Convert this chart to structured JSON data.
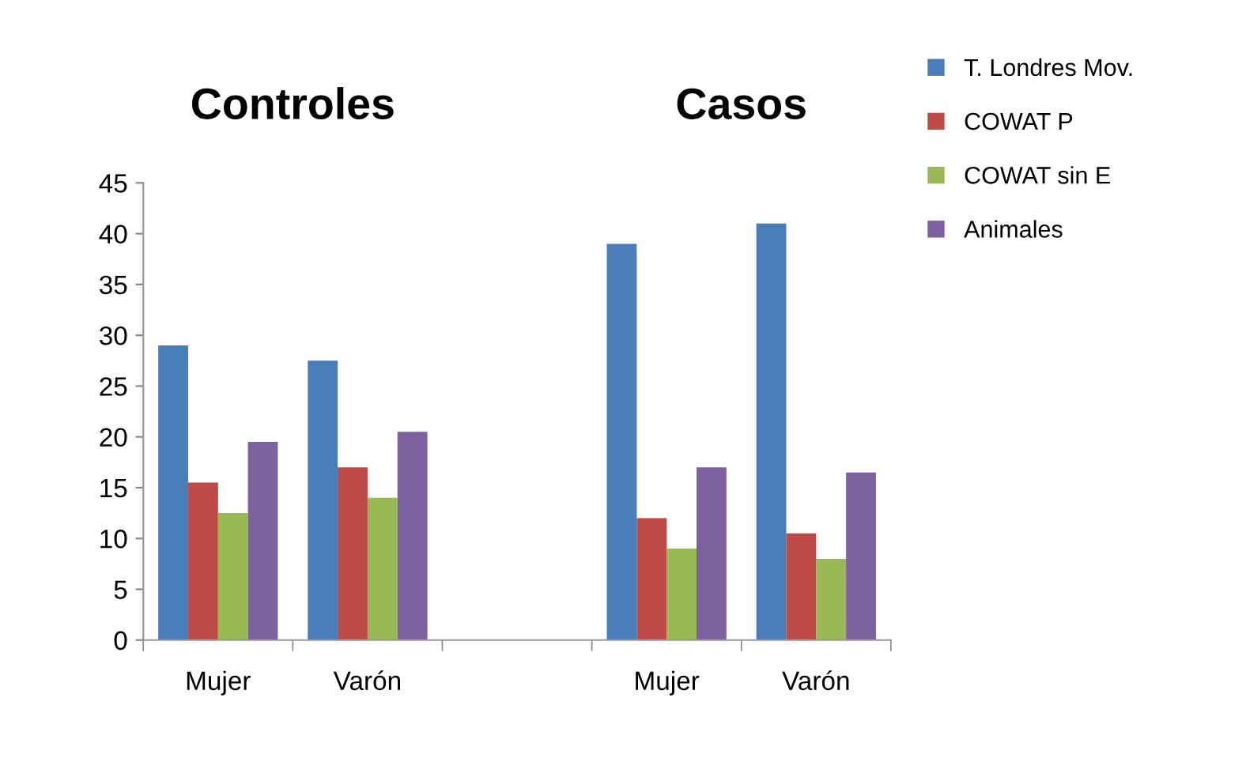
{
  "chart_data": {
    "type": "bar",
    "categories": [
      "Mujer",
      "Varón",
      null,
      "Mujer",
      "Varón"
    ],
    "series": [
      {
        "name": "T. Londres Mov.",
        "color": "#4a7ebb",
        "values": [
          29,
          27.5,
          null,
          39,
          41
        ]
      },
      {
        "name": "COWAT P",
        "color": "#be4b48",
        "values": [
          15.5,
          17,
          null,
          12,
          10.5
        ]
      },
      {
        "name": "COWAT sin E",
        "color": "#98b954",
        "values": [
          12.5,
          14,
          null,
          9,
          8
        ]
      },
      {
        "name": "Animales",
        "color": "#7d60a0",
        "values": [
          19.5,
          20.5,
          null,
          17,
          16.5
        ]
      }
    ],
    "annotations": [
      "Controles",
      "Casos"
    ],
    "ylim": [
      0,
      45
    ],
    "yticks": [
      0,
      5,
      10,
      15,
      20,
      25,
      30,
      35,
      40,
      45
    ],
    "grid": false,
    "legend": "right"
  }
}
